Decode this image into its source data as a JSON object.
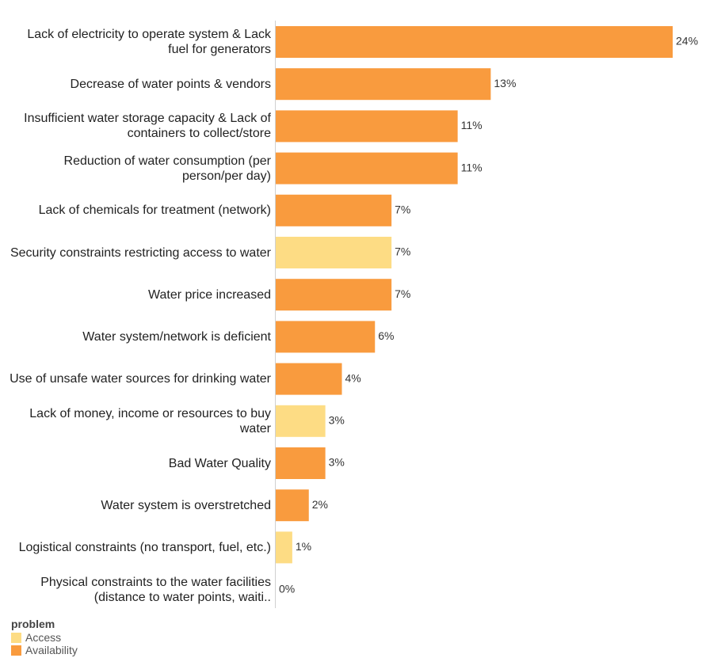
{
  "chart_data": {
    "type": "bar",
    "orientation": "horizontal",
    "categories": [
      "Lack of electricity to operate system & Lack fuel for generators",
      "Decrease of water points & vendors",
      "Insufficient water storage capacity & Lack of containers to collect/store",
      "Reduction of water consumption (per person/per day)",
      "Lack of chemicals for treatment (network)",
      "Security constraints restricting access to water",
      "Water price increased",
      "Water system/network is deficient",
      "Use of unsafe water sources for drinking water",
      "Lack of money, income or resources to buy water",
      "Bad Water Quality",
      "Water system is overstretched",
      "Logistical constraints (no transport, fuel, etc.)",
      "Physical constraints to the water facilities (distance to water points, waiti.."
    ],
    "series": [
      {
        "name": "Access",
        "color": "#fddc84",
        "values": [
          null,
          null,
          null,
          null,
          null,
          7,
          null,
          null,
          null,
          3,
          null,
          null,
          1,
          null
        ],
        "value_labels": [
          null,
          null,
          null,
          null,
          null,
          "7%",
          null,
          null,
          null,
          "3%",
          null,
          null,
          "1%",
          null
        ]
      },
      {
        "name": "Availability",
        "color": "#f99b3e",
        "values": [
          24,
          13,
          11,
          11,
          7,
          null,
          7,
          6,
          4,
          null,
          3,
          2,
          null,
          0
        ],
        "value_labels": [
          "24%",
          "13%",
          "11%",
          "11%",
          "7%",
          null,
          "7%",
          "6%",
          "4%",
          null,
          "3%",
          "2%",
          null,
          "0%"
        ]
      }
    ],
    "xlim": [
      0,
      24
    ],
    "legend_title": "problem",
    "legend": "bottom-left"
  }
}
